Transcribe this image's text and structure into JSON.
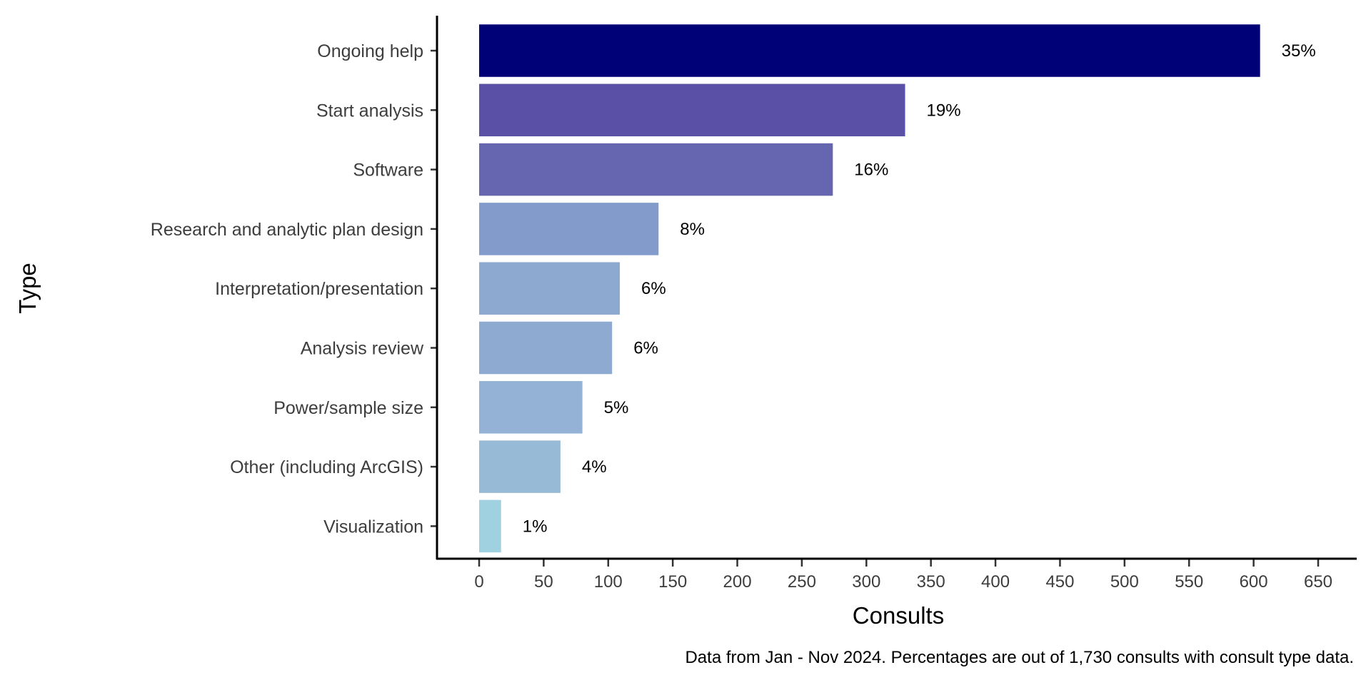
{
  "chart_data": {
    "type": "bar",
    "orientation": "horizontal",
    "categories": [
      "Ongoing help",
      "Start analysis",
      "Software",
      "Research and analytic plan design",
      "Interpretation/presentation",
      "Analysis review",
      "Power/sample size",
      "Other (including ArcGIS)",
      "Visualization"
    ],
    "values": [
      605,
      330,
      274,
      139,
      109,
      103,
      80,
      63,
      17
    ],
    "data_labels": [
      "35%",
      "19%",
      "16%",
      "8%",
      "6%",
      "6%",
      "5%",
      "4%",
      "1%"
    ],
    "colors": [
      "#000077",
      "#5a50a5",
      "#6565b0",
      "#839bcb",
      "#8ea9d0",
      "#8eaad1",
      "#93b2d6",
      "#97bad7",
      "#9fd1e0"
    ],
    "xlabel": "Consults",
    "ylabel": "Type",
    "xlim": [
      0,
      650
    ],
    "xticks": [
      0,
      50,
      100,
      150,
      200,
      250,
      300,
      350,
      400,
      450,
      500,
      550,
      600,
      650
    ],
    "caption": "Data from Jan - Nov 2024. Percentages are out of 1,730 consults with consult type data.",
    "grid": false
  }
}
